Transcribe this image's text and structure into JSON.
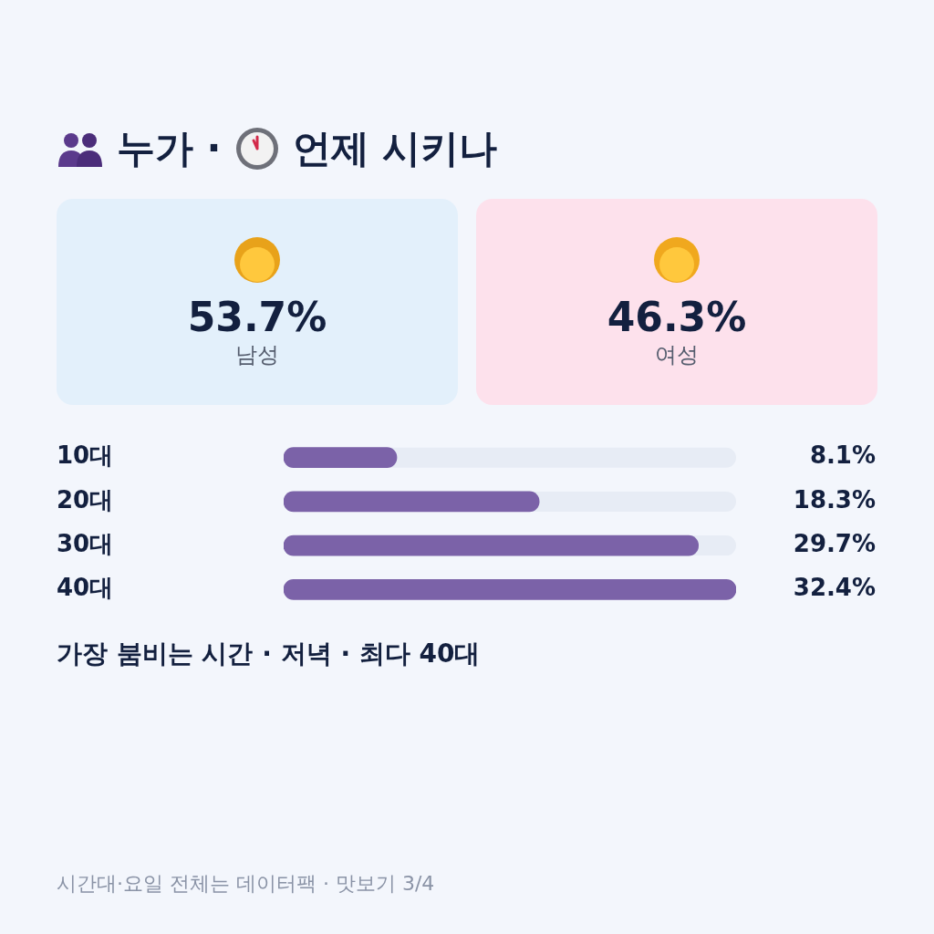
{
  "chart_data": [
    {
      "type": "other",
      "title": "누가 · 언제 시키나",
      "categories": [
        "남성",
        "여성"
      ],
      "values": [
        53.7,
        46.3
      ],
      "value_labels": [
        "53.7%",
        "46.3%"
      ],
      "colors": [
        "#e3f0fb",
        "#fde1ec"
      ]
    },
    {
      "type": "bar",
      "orientation": "horizontal",
      "categories": [
        "10대",
        "20대",
        "30대",
        "40대"
      ],
      "values": [
        8.1,
        18.3,
        29.7,
        32.4
      ],
      "value_labels": [
        "8.1%",
        "18.3%",
        "29.7%",
        "32.4%"
      ],
      "color": "#7b62a8",
      "grid": false,
      "legend": false,
      "tick_labels": "y",
      "annotations": [
        "가장 붐비는 시간 · 저녁 · 최다 40대",
        "시간대·요일 전체는 데이터팩 · 맛보기 3/4"
      ]
    }
  ]
}
